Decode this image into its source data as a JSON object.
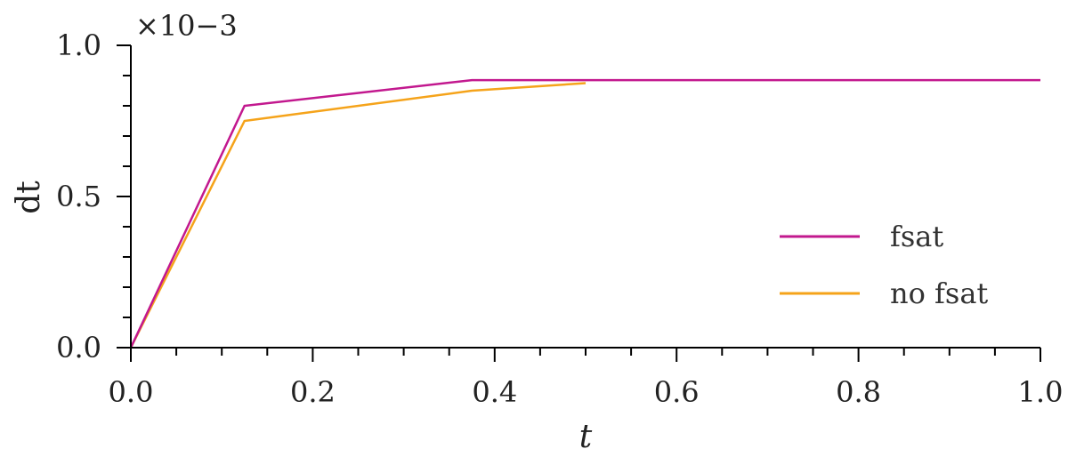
{
  "chart_data": {
    "type": "line",
    "xlabel": "t",
    "ylabel": "dt",
    "y_scale_label": "×10−3",
    "xlim": [
      0.0,
      1.0
    ],
    "ylim": [
      0.0,
      1.0
    ],
    "x_ticks": [
      "0.0",
      "0.2",
      "0.4",
      "0.6",
      "0.8",
      "1.0"
    ],
    "y_ticks": [
      "0.0",
      "0.5",
      "1.0"
    ],
    "x_tick_values": [
      0.0,
      0.2,
      0.4,
      0.6,
      0.8,
      1.0
    ],
    "y_tick_values": [
      0.0,
      0.5,
      1.0
    ],
    "x_minor_step": 0.05,
    "y_minor_step": 0.1,
    "grid": false,
    "legend_position": "right-center",
    "series": [
      {
        "name": "fsat",
        "color": "#C2188E",
        "x": [
          0.0,
          0.125,
          0.375,
          0.5,
          1.0
        ],
        "y": [
          0.0,
          0.8,
          0.885,
          0.885,
          0.885
        ]
      },
      {
        "name": "no fsat",
        "color": "#F5A31A",
        "x": [
          0.0,
          0.125,
          0.375,
          0.5
        ],
        "y": [
          0.0,
          0.75,
          0.85,
          0.875
        ]
      }
    ]
  }
}
